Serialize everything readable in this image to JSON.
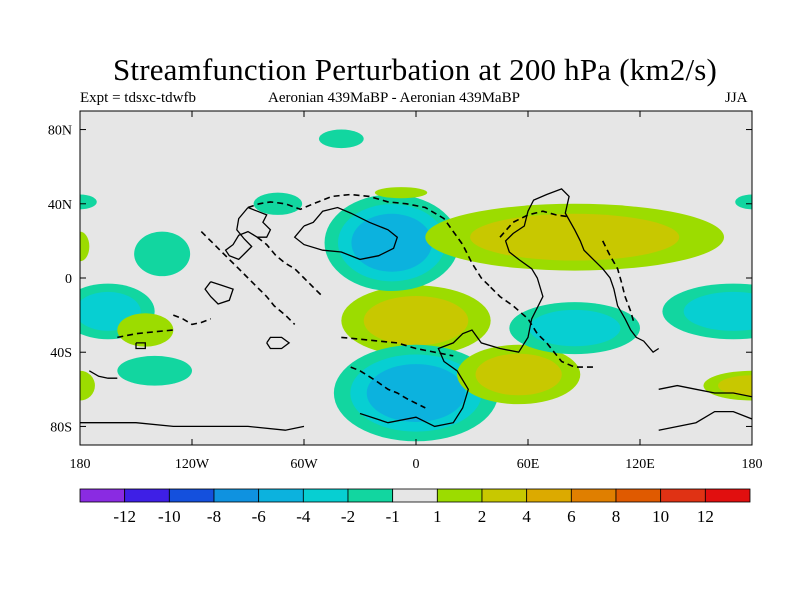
{
  "chart_data": {
    "type": "contour-map",
    "title": "Streamfunction Perturbation at 200 hPa (km2/s)",
    "subtitle_left": "Expt = tdsxc-tdwfb",
    "subtitle_center": "Aeronian 439MaBP - Aeronian 439MaBP",
    "subtitle_right": "JJA",
    "x_ticks": [
      {
        "lon": -180,
        "label": "180"
      },
      {
        "lon": -120,
        "label": "120W"
      },
      {
        "lon": -60,
        "label": "60W"
      },
      {
        "lon": 0,
        "label": "0"
      },
      {
        "lon": 60,
        "label": "60E"
      },
      {
        "lon": 120,
        "label": "120E"
      },
      {
        "lon": 180,
        "label": "180"
      }
    ],
    "y_ticks": [
      {
        "lat": 80,
        "label": "80N"
      },
      {
        "lat": 40,
        "label": "40N"
      },
      {
        "lat": 0,
        "label": "0"
      },
      {
        "lat": -40,
        "label": "40S"
      },
      {
        "lat": -80,
        "label": "80S"
      }
    ],
    "lon_range": [
      -180,
      180
    ],
    "lat_range": [
      -90,
      90
    ],
    "colorbar": {
      "labels": [
        "-12",
        "-10",
        "-8",
        "-6",
        "-4",
        "-2",
        "-1",
        "1",
        "2",
        "4",
        "6",
        "8",
        "10",
        "12"
      ],
      "colors": [
        "#8a2be2",
        "#3e1fe6",
        "#1450dd",
        "#0f92e0",
        "#0cb2de",
        "#07cfd2",
        "#12d6a0",
        "#e6e6e6",
        "#9cdc00",
        "#c8c800",
        "#dcaa00",
        "#e07f00",
        "#e05a00",
        "#e03214",
        "#e10f0f"
      ]
    },
    "anomalies": [
      {
        "lon": 0,
        "lat": -23,
        "rx": 40,
        "ry": 19,
        "levels": [
          "#9cdc00",
          "#c8c800"
        ]
      },
      {
        "lon": 0,
        "lat": -62,
        "rx": 44,
        "ry": 26,
        "levels": [
          "#12d6a0",
          "#07cfd2",
          "#0cb2de"
        ]
      },
      {
        "lon": -13,
        "lat": 19,
        "rx": 36,
        "ry": 26,
        "levels": [
          "#12d6a0",
          "#07cfd2",
          "#0cb2de"
        ]
      },
      {
        "lon": 85,
        "lat": 22,
        "rx": 80,
        "ry": 18,
        "levels": [
          "#9cdc00",
          "#c8c800"
        ]
      },
      {
        "lon": 55,
        "lat": -52,
        "rx": 33,
        "ry": 16,
        "levels": [
          "#9cdc00",
          "#c8c800"
        ]
      },
      {
        "lon": 85,
        "lat": -27,
        "rx": 35,
        "ry": 14,
        "levels": [
          "#12d6a0",
          "#07cfd2"
        ]
      },
      {
        "lon": 170,
        "lat": -18,
        "rx": 38,
        "ry": 15,
        "levels": [
          "#12d6a0",
          "#07cfd2"
        ]
      },
      {
        "lon": -165,
        "lat": -18,
        "rx": 25,
        "ry": 15,
        "levels": [
          "#12d6a0",
          "#07cfd2"
        ]
      },
      {
        "lon": 180,
        "lat": -58,
        "rx": 26,
        "ry": 8,
        "levels": [
          "#9cdc00",
          "#c8c800"
        ]
      },
      {
        "lon": -180,
        "lat": -58,
        "rx": 8,
        "ry": 8,
        "levels": [
          "#9cdc00"
        ]
      },
      {
        "lon": -136,
        "lat": 13,
        "rx": 15,
        "ry": 12,
        "levels": [
          "#12d6a0"
        ]
      },
      {
        "lon": -140,
        "lat": -50,
        "rx": 20,
        "ry": 8,
        "levels": [
          "#12d6a0"
        ]
      },
      {
        "lon": -145,
        "lat": -28,
        "rx": 15,
        "ry": 9,
        "levels": [
          "#9cdc00"
        ]
      },
      {
        "lon": -40,
        "lat": 75,
        "rx": 12,
        "ry": 5,
        "levels": [
          "#12d6a0"
        ]
      },
      {
        "lon": -74,
        "lat": 40,
        "rx": 13,
        "ry": 6,
        "levels": [
          "#12d6a0"
        ]
      },
      {
        "lon": -8,
        "lat": 46,
        "rx": 14,
        "ry": 3,
        "levels": [
          "#9cdc00"
        ]
      },
      {
        "lon": -180,
        "lat": 17,
        "rx": 5,
        "ry": 8,
        "levels": [
          "#9cdc00"
        ]
      },
      {
        "lon": -180,
        "lat": 41,
        "rx": 9,
        "ry": 4,
        "levels": [
          "#12d6a0"
        ]
      },
      {
        "lon": 180,
        "lat": 41,
        "rx": 9,
        "ry": 4,
        "levels": [
          "#12d6a0"
        ]
      }
    ],
    "coastlines": [
      [
        [
          -90,
          38
        ],
        [
          -85,
          36
        ],
        [
          -80,
          34
        ],
        [
          -82,
          30
        ],
        [
          -78,
          26
        ],
        [
          -80,
          22
        ],
        [
          -85,
          22
        ],
        [
          -90,
          25
        ],
        [
          -95,
          23
        ],
        [
          -98,
          18
        ],
        [
          -102,
          15
        ],
        [
          -100,
          12
        ],
        [
          -95,
          10
        ],
        [
          -92,
          13
        ],
        [
          -88,
          17
        ],
        [
          -92,
          21
        ],
        [
          -96,
          26
        ],
        [
          -95,
          32
        ],
        [
          -90,
          38
        ]
      ],
      [
        [
          -60,
          28
        ],
        [
          -55,
          30
        ],
        [
          -50,
          36
        ],
        [
          -42,
          38
        ],
        [
          -35,
          35
        ],
        [
          -25,
          30
        ],
        [
          -15,
          26
        ],
        [
          -10,
          22
        ],
        [
          -12,
          16
        ],
        [
          -20,
          12
        ],
        [
          -30,
          10
        ],
        [
          -40,
          14
        ],
        [
          -50,
          15
        ],
        [
          -60,
          18
        ],
        [
          -65,
          22
        ],
        [
          -60,
          28
        ]
      ],
      [
        [
          -110,
          -2
        ],
        [
          -104,
          -4
        ],
        [
          -98,
          -6
        ],
        [
          -100,
          -12
        ],
        [
          -106,
          -14
        ],
        [
          -110,
          -10
        ],
        [
          -113,
          -6
        ],
        [
          -110,
          -2
        ]
      ],
      [
        [
          -30,
          -73
        ],
        [
          -15,
          -78
        ],
        [
          0,
          -75
        ],
        [
          10,
          -80
        ],
        [
          20,
          -78
        ],
        [
          25,
          -70
        ],
        [
          28,
          -60
        ],
        [
          22,
          -50
        ],
        [
          15,
          -45
        ],
        [
          12,
          -38
        ],
        [
          20,
          -35
        ],
        [
          25,
          -30
        ],
        [
          30,
          -28
        ],
        [
          35,
          -35
        ],
        [
          45,
          -38
        ],
        [
          55,
          -40
        ],
        [
          60,
          -32
        ],
        [
          62,
          -22
        ],
        [
          68,
          -10
        ],
        [
          65,
          0
        ],
        [
          62,
          5
        ],
        [
          55,
          10
        ],
        [
          50,
          14
        ],
        [
          48,
          20
        ],
        [
          52,
          24
        ],
        [
          58,
          28
        ],
        [
          60,
          36
        ],
        [
          63,
          42
        ],
        [
          70,
          45
        ],
        [
          78,
          48
        ],
        [
          82,
          44
        ],
        [
          80,
          35
        ],
        [
          85,
          26
        ],
        [
          88,
          20
        ],
        [
          90,
          15
        ],
        [
          95,
          10
        ],
        [
          100,
          5
        ],
        [
          104,
          0
        ],
        [
          106,
          -6
        ],
        [
          108,
          -15
        ],
        [
          112,
          -22
        ],
        [
          115,
          -28
        ],
        [
          118,
          -32
        ],
        [
          122,
          -34
        ],
        [
          127,
          -40
        ],
        [
          130,
          -38
        ]
      ],
      [
        [
          130,
          -60
        ],
        [
          140,
          -58
        ],
        [
          150,
          -60
        ],
        [
          160,
          -62
        ],
        [
          170,
          -62
        ],
        [
          180,
          -64
        ]
      ],
      [
        [
          -180,
          -78
        ],
        [
          -150,
          -78
        ],
        [
          -130,
          -80
        ],
        [
          -110,
          -80
        ],
        [
          -90,
          -80
        ],
        [
          -70,
          -82
        ],
        [
          -60,
          -80
        ]
      ],
      [
        [
          130,
          -82
        ],
        [
          150,
          -78
        ],
        [
          160,
          -72
        ],
        [
          170,
          -72
        ],
        [
          180,
          -76
        ]
      ],
      [
        [
          -175,
          -50
        ],
        [
          -170,
          -53
        ],
        [
          -165,
          -54
        ],
        [
          -160,
          -54
        ]
      ],
      [
        [
          -80,
          -35
        ],
        [
          -78,
          -38
        ],
        [
          -72,
          -38
        ],
        [
          -68,
          -35
        ],
        [
          -72,
          -32
        ],
        [
          -78,
          -32
        ],
        [
          -80,
          -35
        ]
      ],
      [
        [
          -150,
          -35
        ],
        [
          -145,
          -35
        ],
        [
          -145,
          -38
        ],
        [
          -150,
          -38
        ],
        [
          -150,
          -35
        ]
      ]
    ],
    "dashed_coastlines": [
      [
        [
          -90,
          38
        ],
        [
          -84,
          40
        ],
        [
          -78,
          41
        ],
        [
          -70,
          40
        ],
        [
          -62,
          37
        ],
        [
          -55,
          40
        ],
        [
          -45,
          44
        ],
        [
          -35,
          45
        ],
        [
          -25,
          44
        ],
        [
          -15,
          41
        ],
        [
          -5,
          40
        ],
        [
          5,
          38
        ],
        [
          15,
          32
        ],
        [
          20,
          25
        ],
        [
          25,
          18
        ],
        [
          30,
          8
        ],
        [
          35,
          0
        ],
        [
          40,
          -5
        ]
      ],
      [
        [
          40,
          -5
        ],
        [
          45,
          -10
        ],
        [
          52,
          -15
        ],
        [
          60,
          -22
        ],
        [
          65,
          -30
        ],
        [
          70,
          -35
        ],
        [
          78,
          -45
        ],
        [
          85,
          -48
        ],
        [
          95,
          -48
        ]
      ],
      [
        [
          -115,
          25
        ],
        [
          -110,
          20
        ],
        [
          -105,
          15
        ],
        [
          -100,
          10
        ],
        [
          -95,
          5
        ],
        [
          -90,
          0
        ],
        [
          -85,
          -5
        ],
        [
          -80,
          -10
        ],
        [
          -76,
          -15
        ],
        [
          -70,
          -20
        ],
        [
          -65,
          -25
        ]
      ],
      [
        [
          -85,
          22
        ],
        [
          -80,
          18
        ],
        [
          -75,
          12
        ],
        [
          -70,
          8
        ],
        [
          -65,
          5
        ],
        [
          -60,
          0
        ],
        [
          -55,
          -5
        ],
        [
          -50,
          -10
        ]
      ],
      [
        [
          -40,
          -32
        ],
        [
          -30,
          -33
        ],
        [
          -20,
          -34
        ],
        [
          -10,
          -35
        ],
        [
          0,
          -38
        ],
        [
          10,
          -40
        ],
        [
          20,
          -42
        ]
      ],
      [
        [
          -35,
          -48
        ],
        [
          -30,
          -50
        ],
        [
          -22,
          -55
        ],
        [
          -15,
          -60
        ],
        [
          -10,
          -62
        ],
        [
          -5,
          -65
        ],
        [
          5,
          -70
        ]
      ],
      [
        [
          45,
          22
        ],
        [
          52,
          30
        ],
        [
          60,
          34
        ],
        [
          68,
          36
        ],
        [
          75,
          34
        ],
        [
          82,
          33
        ]
      ],
      [
        [
          100,
          20
        ],
        [
          104,
          12
        ],
        [
          108,
          5
        ],
        [
          110,
          -2
        ],
        [
          112,
          -10
        ],
        [
          115,
          -18
        ],
        [
          117,
          -25
        ]
      ],
      [
        [
          -130,
          -20
        ],
        [
          -125,
          -22
        ],
        [
          -120,
          -25
        ],
        [
          -115,
          -24
        ],
        [
          -110,
          -22
        ]
      ],
      [
        [
          -160,
          -32
        ],
        [
          -150,
          -30
        ],
        [
          -140,
          -29
        ],
        [
          -130,
          -28
        ]
      ]
    ]
  }
}
